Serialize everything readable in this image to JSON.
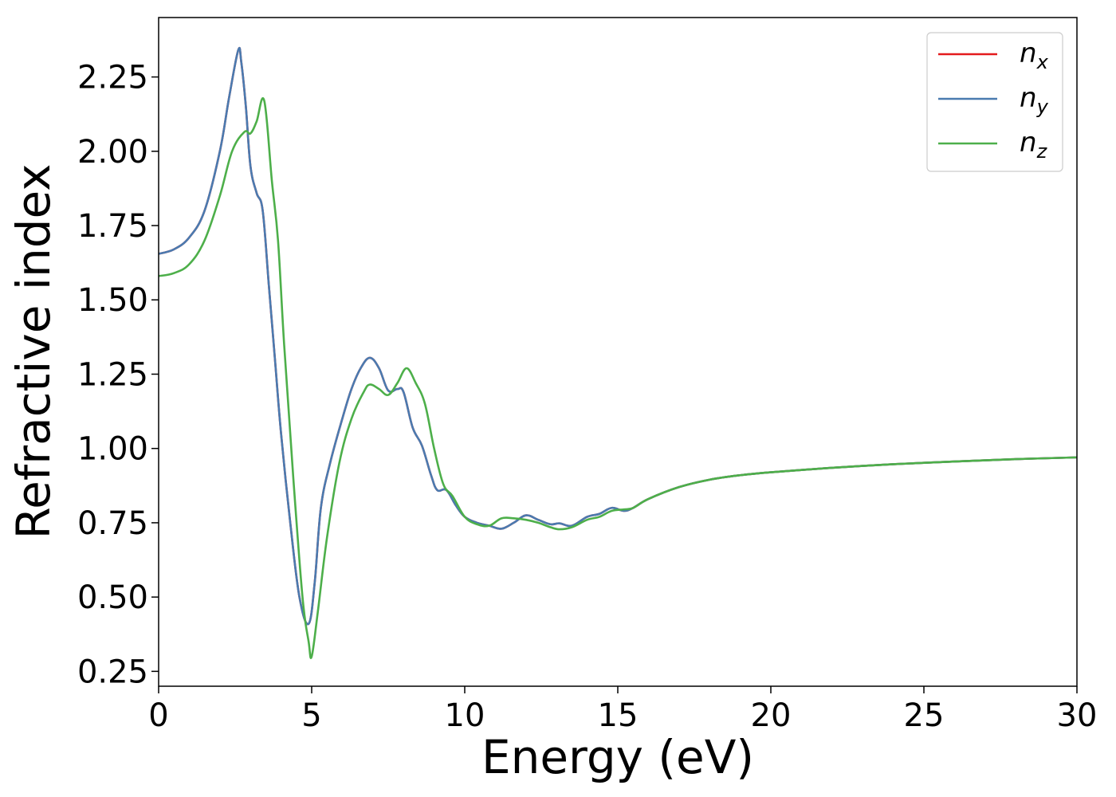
{
  "chart_data": {
    "type": "line",
    "xlabel": "Energy (eV)",
    "ylabel": "Refractive index",
    "xlim": [
      0,
      30
    ],
    "ylim": [
      0.2,
      2.45
    ],
    "xticks": [
      0,
      5,
      10,
      15,
      20,
      25,
      30
    ],
    "xtick_labels": [
      "0",
      "5",
      "10",
      "15",
      "20",
      "25",
      "30"
    ],
    "yticks": [
      0.25,
      0.5,
      0.75,
      1.0,
      1.25,
      1.5,
      1.75,
      2.0,
      2.25
    ],
    "ytick_labels": [
      "0.25",
      "0.50",
      "0.75",
      "1.00",
      "1.25",
      "1.50",
      "1.75",
      "2.00",
      "2.25"
    ],
    "grid": false,
    "legend_position": "top-right",
    "series": [
      {
        "name": "n_x",
        "label_base": "n",
        "label_sub": "x",
        "color": "#e41a1c",
        "x": [
          0,
          0.5,
          1.0,
          1.5,
          2.0,
          2.3,
          2.6,
          2.7,
          2.85,
          3.0,
          3.2,
          3.4,
          3.6,
          3.8,
          4.0,
          4.3,
          4.6,
          4.9,
          5.1,
          5.3,
          5.6,
          6.0,
          6.3,
          6.6,
          6.9,
          7.2,
          7.5,
          7.8,
          8.0,
          8.3,
          8.6,
          8.9,
          9.1,
          9.4,
          9.7,
          10.0,
          10.4,
          10.8,
          11.2,
          11.6,
          12.0,
          12.4,
          12.8,
          13.1,
          13.5,
          14.0,
          14.4,
          14.8,
          15.2,
          15.5,
          16.0,
          17.0,
          18.0,
          19.0,
          20.0,
          22.0,
          24.0,
          26.0,
          28.0,
          30.0
        ],
        "y": [
          1.655,
          1.67,
          1.71,
          1.8,
          2.0,
          2.18,
          2.34,
          2.3,
          2.15,
          1.95,
          1.86,
          1.8,
          1.55,
          1.3,
          1.05,
          0.75,
          0.5,
          0.41,
          0.55,
          0.8,
          0.95,
          1.1,
          1.2,
          1.27,
          1.305,
          1.27,
          1.195,
          1.2,
          1.19,
          1.07,
          1.01,
          0.91,
          0.86,
          0.86,
          0.81,
          0.77,
          0.75,
          0.74,
          0.73,
          0.75,
          0.775,
          0.76,
          0.745,
          0.748,
          0.74,
          0.77,
          0.78,
          0.8,
          0.79,
          0.8,
          0.83,
          0.87,
          0.895,
          0.91,
          0.92,
          0.935,
          0.947,
          0.956,
          0.964,
          0.97
        ]
      },
      {
        "name": "n_y",
        "label_base": "n",
        "label_sub": "y",
        "color": "#4a7bb0",
        "x": [
          0,
          0.5,
          1.0,
          1.5,
          2.0,
          2.3,
          2.6,
          2.7,
          2.85,
          3.0,
          3.2,
          3.4,
          3.6,
          3.8,
          4.0,
          4.3,
          4.6,
          4.9,
          5.1,
          5.3,
          5.6,
          6.0,
          6.3,
          6.6,
          6.9,
          7.2,
          7.5,
          7.8,
          8.0,
          8.3,
          8.6,
          8.9,
          9.1,
          9.4,
          9.7,
          10.0,
          10.4,
          10.8,
          11.2,
          11.6,
          12.0,
          12.4,
          12.8,
          13.1,
          13.5,
          14.0,
          14.4,
          14.8,
          15.2,
          15.5,
          16.0,
          17.0,
          18.0,
          19.0,
          20.0,
          22.0,
          24.0,
          26.0,
          28.0,
          30.0
        ],
        "y": [
          1.655,
          1.67,
          1.71,
          1.8,
          2.0,
          2.18,
          2.34,
          2.3,
          2.15,
          1.95,
          1.86,
          1.8,
          1.55,
          1.3,
          1.05,
          0.75,
          0.5,
          0.41,
          0.55,
          0.8,
          0.95,
          1.1,
          1.2,
          1.27,
          1.305,
          1.27,
          1.195,
          1.2,
          1.19,
          1.07,
          1.01,
          0.91,
          0.86,
          0.86,
          0.81,
          0.77,
          0.75,
          0.74,
          0.73,
          0.75,
          0.775,
          0.76,
          0.745,
          0.748,
          0.74,
          0.77,
          0.78,
          0.8,
          0.79,
          0.8,
          0.83,
          0.87,
          0.895,
          0.91,
          0.92,
          0.935,
          0.947,
          0.956,
          0.964,
          0.97
        ]
      },
      {
        "name": "n_z",
        "label_base": "n",
        "label_sub": "z",
        "color": "#4daf4a",
        "x": [
          0,
          0.5,
          1.0,
          1.5,
          2.0,
          2.4,
          2.8,
          3.0,
          3.2,
          3.45,
          3.7,
          3.9,
          4.1,
          4.4,
          4.7,
          4.9,
          5.0,
          5.2,
          5.5,
          5.9,
          6.3,
          6.7,
          6.9,
          7.2,
          7.5,
          7.8,
          8.1,
          8.4,
          8.7,
          9.0,
          9.3,
          9.6,
          10.0,
          10.4,
          10.8,
          11.2,
          11.6,
          12.0,
          12.4,
          12.8,
          13.1,
          13.5,
          14.0,
          14.4,
          14.8,
          15.2,
          15.5,
          16.0,
          17.0,
          18.0,
          19.0,
          20.0,
          22.0,
          24.0,
          26.0,
          28.0,
          30.0
        ],
        "y": [
          1.58,
          1.59,
          1.62,
          1.7,
          1.85,
          2.0,
          2.065,
          2.06,
          2.1,
          2.17,
          1.9,
          1.7,
          1.35,
          0.9,
          0.5,
          0.35,
          0.3,
          0.45,
          0.7,
          0.95,
          1.1,
          1.19,
          1.215,
          1.2,
          1.18,
          1.22,
          1.27,
          1.22,
          1.15,
          1.0,
          0.88,
          0.84,
          0.77,
          0.745,
          0.74,
          0.765,
          0.765,
          0.76,
          0.75,
          0.735,
          0.728,
          0.735,
          0.76,
          0.77,
          0.79,
          0.795,
          0.8,
          0.83,
          0.87,
          0.895,
          0.91,
          0.92,
          0.935,
          0.947,
          0.956,
          0.964,
          0.97
        ]
      }
    ]
  }
}
